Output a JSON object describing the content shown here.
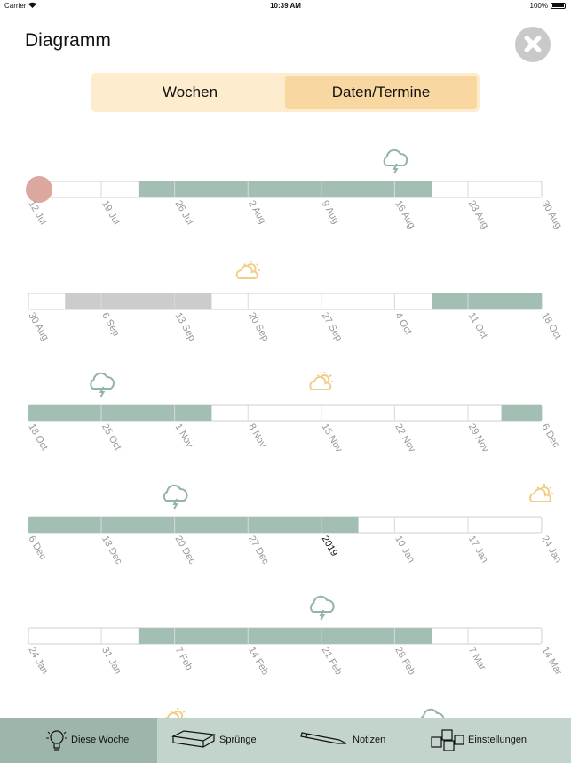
{
  "status_bar": {
    "carrier": "Carrier",
    "time": "10:39 AM",
    "battery": "100%"
  },
  "title": "Diagramm",
  "segments": [
    {
      "label": "Wochen",
      "selected": false
    },
    {
      "label": "Daten/Termine",
      "selected": true
    }
  ],
  "colors": {
    "green": "#a3bfb4",
    "gray": "#cccccc",
    "today": "#dca79e",
    "tick": "#999999",
    "cloud_icon": "#93b4a8",
    "sun_icon": "#f0cf8a"
  },
  "rows": [
    {
      "dates": [
        "12 Jul",
        "19 Jul",
        "26 Jul",
        "2 Aug",
        "9 Aug",
        "16 Aug",
        "23 Aug",
        "30 Aug"
      ],
      "segments": [
        {
          "from": 1.5,
          "to": 5.5,
          "color": "green"
        }
      ],
      "today_marker_at": 0,
      "icons": [
        {
          "type": "cloud-icon",
          "at": 5.0
        }
      ]
    },
    {
      "dates": [
        "30 Aug",
        "6 Sep",
        "13 Sep",
        "20 Sep",
        "27 Sep",
        "4 Oct",
        "11 Oct",
        "18 Oct"
      ],
      "segments": [
        {
          "from": 0.5,
          "to": 2.5,
          "color": "gray"
        },
        {
          "from": 5.5,
          "to": 7.0,
          "color": "green"
        }
      ],
      "icons": [
        {
          "type": "sun-icon",
          "at": 3.0
        }
      ]
    },
    {
      "dates": [
        "18 Oct",
        "25 Oct",
        "1 Nov",
        "8 Nov",
        "15 Nov",
        "22 Nov",
        "29 Nov",
        "6 Dec"
      ],
      "segments": [
        {
          "from": 0.0,
          "to": 2.5,
          "color": "green"
        },
        {
          "from": 6.45,
          "to": 7.0,
          "color": "green"
        }
      ],
      "icons": [
        {
          "type": "cloud-icon",
          "at": 1.0
        },
        {
          "type": "sun-icon",
          "at": 4.0
        }
      ]
    },
    {
      "dates": [
        "6 Dec",
        "13 Dec",
        "20 Dec",
        "27 Dec",
        "2019",
        "10 Jan",
        "17 Jan",
        "24 Jan"
      ],
      "highlight_index": 4,
      "segments": [
        {
          "from": 0.0,
          "to": 4.5,
          "color": "green"
        }
      ],
      "icons": [
        {
          "type": "cloud-icon",
          "at": 2.0
        },
        {
          "type": "sun-icon",
          "at": 7.0
        }
      ]
    },
    {
      "dates": [
        "24 Jan",
        "31 Jan",
        "7 Feb",
        "14 Feb",
        "21 Feb",
        "28 Feb",
        "7 Mar",
        "14 Mar"
      ],
      "segments": [
        {
          "from": 1.5,
          "to": 5.5,
          "color": "green"
        }
      ],
      "icons": [
        {
          "type": "cloud-icon",
          "at": 4.0
        }
      ]
    }
  ],
  "partial_icons": [
    {
      "type": "sun-icon",
      "at": 2.0
    },
    {
      "type": "cloud-icon",
      "at": 5.5
    }
  ],
  "tabs": [
    {
      "label": "Diese Woche",
      "icon": "lightbulb-icon",
      "active": true
    },
    {
      "label": "Sprünge",
      "icon": "book-icon",
      "active": false
    },
    {
      "label": "Notizen",
      "icon": "pencil-icon",
      "active": false
    },
    {
      "label": "Einstellungen",
      "icon": "blocks-icon",
      "active": false
    }
  ]
}
